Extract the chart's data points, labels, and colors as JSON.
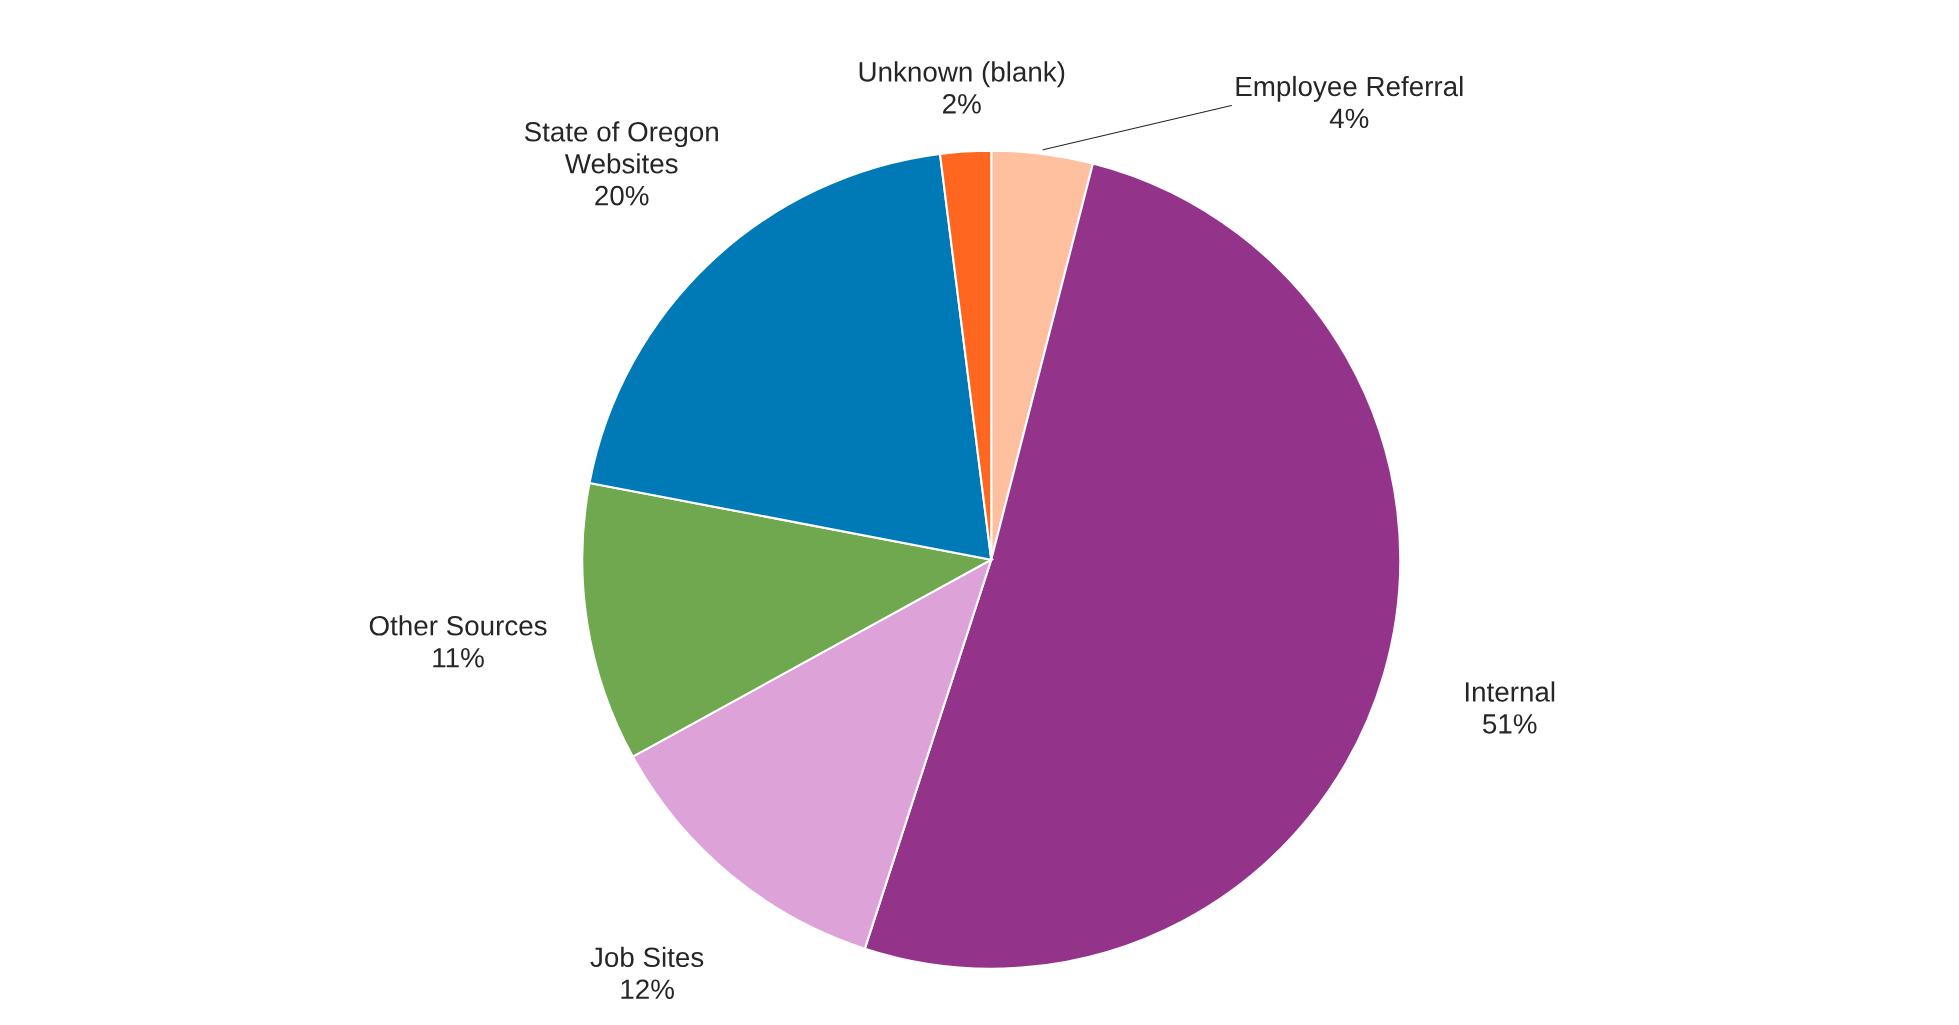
{
  "chart_data": {
    "type": "pie",
    "categories": [
      "Employee Referral",
      "Internal",
      "Job Sites",
      "Other Sources",
      "State of Oregon\nWebsites",
      "Unknown (blank)"
    ],
    "values": [
      4,
      51,
      12,
      11,
      20,
      2
    ],
    "colors": [
      "#ffc09f",
      "#93338a",
      "#dda3d8",
      "#70a84f",
      "#0079b7",
      "#ff661f"
    ],
    "value_labels": [
      "4%",
      "51%",
      "12%",
      "11%",
      "20%",
      "2%"
    ],
    "legend": false
  }
}
